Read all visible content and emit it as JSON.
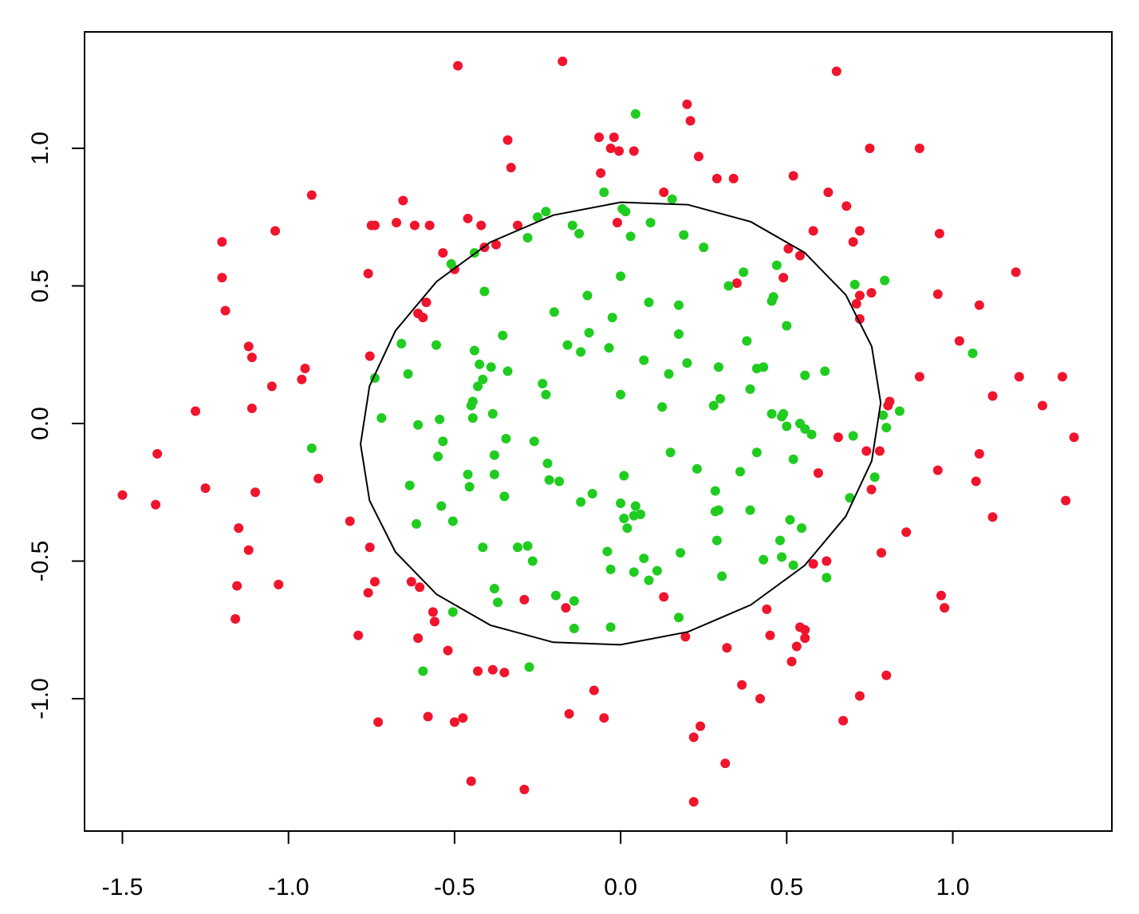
{
  "chart_data": {
    "type": "scatter",
    "xlim": [
      -1.614,
      1.479
    ],
    "ylim": [
      -1.481,
      1.423
    ],
    "xticks": [
      -1.5,
      {
        "value": -1,
        "label": "-1.0"
      },
      -0.5,
      {
        "value": 0,
        "label": "0.0"
      },
      0.5,
      {
        "value": 1,
        "label": "1.0"
      }
    ],
    "yticks": [
      {
        "value": -1,
        "label": "-1.0"
      },
      -0.5,
      {
        "value": 0,
        "label": "0.0"
      },
      0.5,
      {
        "value": 1,
        "label": "1.0"
      }
    ],
    "series": [
      {
        "color": "#f0142d",
        "x": [
          -0.175,
          -0.49,
          0.65,
          0.2,
          0.21,
          -0.34,
          -0.065,
          -0.02,
          -0.03,
          -0.005,
          0.04,
          0.75,
          0.9,
          0.235,
          -0.33,
          -0.06,
          0.29,
          0.34,
          0.52,
          -0.93,
          0.13,
          0.625,
          -0.655,
          0.68,
          -0.01,
          -0.74,
          -0.75,
          -0.675,
          -0.62,
          -0.575,
          -0.46,
          -0.42,
          -0.31,
          -1.04,
          0.58,
          0.72,
          0.7,
          0.96,
          -1.2,
          -0.375,
          -0.41,
          0.505,
          -0.535,
          0.54,
          -0.5,
          1.19,
          -1.2,
          -0.76,
          0.49,
          0.35,
          -1.19,
          -0.585,
          0.755,
          0.955,
          0.72,
          0.71,
          -0.61,
          -0.595,
          1.08,
          0.72,
          -1.12,
          1.02,
          -1.11,
          -0.755,
          -0.95,
          -0.96,
          0.9,
          1.2,
          1.33,
          -1.05,
          1.12,
          0.81,
          0.805,
          1.27,
          -1.28,
          -1.11,
          0.655,
          1.365,
          -1.395,
          0.74,
          0.78,
          1.08,
          0.955,
          0.595,
          -0.91,
          1.07,
          -1.5,
          -1.25,
          -1.1,
          0.755,
          -1.4,
          1.34,
          1.12,
          -0.815,
          -1.15,
          0.86,
          -1.12,
          -0.755,
          0.785,
          0.62,
          0.58,
          -0.74,
          -0.63,
          -0.605,
          -1.155,
          -1.03,
          -0.76,
          0.965,
          0.975,
          -0.29,
          0.13,
          -0.165,
          -0.565,
          0.44,
          -0.56,
          -1.16,
          0.54,
          0.555,
          0.555,
          -0.79,
          0.45,
          -0.61,
          0.195,
          0.53,
          0.32,
          -0.52,
          0.515,
          -0.43,
          -0.385,
          -0.35,
          0.8,
          0.365,
          -0.08,
          0.72,
          0.42,
          -0.155,
          -0.58,
          -0.475,
          -0.5,
          -0.05,
          -0.73,
          0.67,
          0.24,
          0.22,
          0.315,
          -0.45,
          -0.29,
          0.22
        ],
        "y": [
          1.316,
          1.3,
          1.28,
          1.16,
          1.1,
          1.03,
          1.04,
          1.04,
          1,
          0.99,
          0.99,
          1,
          1,
          0.97,
          0.93,
          0.91,
          0.89,
          0.89,
          0.9,
          0.83,
          0.84,
          0.84,
          0.81,
          0.79,
          0.73,
          0.72,
          0.72,
          0.73,
          0.72,
          0.72,
          0.745,
          0.72,
          0.72,
          0.7,
          0.7,
          0.7,
          0.66,
          0.69,
          0.66,
          0.65,
          0.64,
          0.635,
          0.62,
          0.61,
          0.56,
          0.55,
          0.53,
          0.545,
          0.53,
          0.51,
          0.41,
          0.44,
          0.475,
          0.47,
          0.465,
          0.435,
          0.4,
          0.385,
          0.43,
          0.38,
          0.28,
          0.3,
          0.24,
          0.245,
          0.2,
          0.16,
          0.17,
          0.17,
          0.17,
          0.135,
          0.1,
          0.08,
          0.065,
          0.065,
          0.045,
          0.055,
          -0.05,
          -0.05,
          -0.11,
          -0.1,
          -0.1,
          -0.11,
          -0.17,
          -0.18,
          -0.2,
          -0.21,
          -0.26,
          -0.235,
          -0.25,
          -0.24,
          -0.295,
          -0.28,
          -0.34,
          -0.355,
          -0.38,
          -0.395,
          -0.46,
          -0.45,
          -0.47,
          -0.5,
          -0.51,
          -0.575,
          -0.575,
          -0.595,
          -0.59,
          -0.585,
          -0.615,
          -0.625,
          -0.67,
          -0.64,
          -0.63,
          -0.67,
          -0.685,
          -0.675,
          -0.72,
          -0.71,
          -0.74,
          -0.75,
          -0.78,
          -0.77,
          -0.77,
          -0.78,
          -0.775,
          -0.81,
          -0.815,
          -0.825,
          -0.865,
          -0.9,
          -0.895,
          -0.905,
          -0.915,
          -0.95,
          -0.97,
          -0.99,
          -1,
          -1.055,
          -1.065,
          -1.07,
          -1.085,
          -1.07,
          -1.085,
          -1.08,
          -1.1,
          -1.14,
          -1.235,
          -1.3,
          -1.33,
          -1.375
        ]
      },
      {
        "color": "#1fcc1f",
        "x": [
          0.045,
          -0.05,
          0.155,
          0.005,
          0.015,
          -0.225,
          -0.25,
          -0.145,
          0.09,
          -0.125,
          0.03,
          0.19,
          -0.28,
          0.25,
          -0.44,
          -0.51,
          0.47,
          0.37,
          0,
          0.795,
          0.325,
          0.705,
          -0.41,
          -0.1,
          0.46,
          0.455,
          0.085,
          0.175,
          -0.2,
          -0.025,
          0.5,
          -0.095,
          0.175,
          -0.355,
          -0.66,
          -0.555,
          -0.16,
          0.38,
          -0.035,
          1.06,
          -0.44,
          -0.12,
          0.07,
          0.2,
          -0.425,
          -0.39,
          0.295,
          0.41,
          0.43,
          0.615,
          -0.34,
          -0.64,
          0.145,
          0.555,
          -0.74,
          -0.415,
          -0.235,
          -0.43,
          0.39,
          -0.225,
          0,
          0.3,
          -0.445,
          -0.45,
          0.28,
          0.125,
          0.84,
          -0.385,
          0.455,
          0.49,
          0.79,
          0.485,
          -0.72,
          -0.445,
          -0.545,
          0.54,
          -0.61,
          0.5,
          0.555,
          0.8,
          0.575,
          0.7,
          -0.345,
          -0.535,
          -0.26,
          -0.93,
          0.15,
          0.41,
          -0.55,
          -0.38,
          0.52,
          -0.22,
          0.23,
          0.36,
          -0.46,
          -0.38,
          0.01,
          0.765,
          -0.215,
          -0.185,
          -0.635,
          -0.455,
          0.285,
          -0.085,
          -0.35,
          0.69,
          -0.12,
          0,
          0.045,
          -0.54,
          0.295,
          0.285,
          0.39,
          0.04,
          0.06,
          0.01,
          -0.505,
          0.51,
          -0.615,
          0.02,
          0.545,
          0.29,
          0.48,
          -0.415,
          -0.28,
          -0.31,
          -0.04,
          0.18,
          0.07,
          0.43,
          0.485,
          -0.265,
          0.52,
          -0.03,
          0.04,
          0.11,
          0.305,
          0.085,
          0.62,
          -0.38,
          -0.195,
          -0.14,
          -0.37,
          -0.505,
          0.175,
          -0.14,
          -0.03,
          -0.275,
          -0.595
        ],
        "y": [
          1.125,
          0.84,
          0.815,
          0.78,
          0.77,
          0.77,
          0.75,
          0.72,
          0.73,
          0.69,
          0.68,
          0.685,
          0.675,
          0.64,
          0.62,
          0.58,
          0.575,
          0.55,
          0.535,
          0.52,
          0.5,
          0.505,
          0.48,
          0.465,
          0.46,
          0.445,
          0.44,
          0.43,
          0.405,
          0.385,
          0.355,
          0.33,
          0.325,
          0.32,
          0.29,
          0.285,
          0.285,
          0.3,
          0.275,
          0.255,
          0.265,
          0.26,
          0.23,
          0.22,
          0.215,
          0.205,
          0.205,
          0.2,
          0.205,
          0.19,
          0.19,
          0.18,
          0.18,
          0.175,
          0.165,
          0.16,
          0.145,
          0.135,
          0.125,
          0.105,
          0.105,
          0.09,
          0.08,
          0.065,
          0.065,
          0.06,
          0.045,
          0.035,
          0.035,
          0.035,
          0.03,
          0.025,
          0.02,
          0.02,
          0.015,
          0,
          -0.005,
          -0.01,
          -0.02,
          -0.015,
          -0.04,
          -0.045,
          -0.055,
          -0.065,
          -0.065,
          -0.09,
          -0.105,
          -0.105,
          -0.12,
          -0.115,
          -0.13,
          -0.145,
          -0.165,
          -0.175,
          -0.185,
          -0.185,
          -0.19,
          -0.195,
          -0.205,
          -0.21,
          -0.225,
          -0.23,
          -0.245,
          -0.255,
          -0.265,
          -0.27,
          -0.285,
          -0.29,
          -0.3,
          -0.3,
          -0.315,
          -0.32,
          -0.315,
          -0.335,
          -0.33,
          -0.345,
          -0.355,
          -0.35,
          -0.365,
          -0.38,
          -0.38,
          -0.425,
          -0.425,
          -0.45,
          -0.445,
          -0.45,
          -0.465,
          -0.47,
          -0.49,
          -0.495,
          -0.485,
          -0.5,
          -0.515,
          -0.53,
          -0.54,
          -0.535,
          -0.555,
          -0.57,
          -0.56,
          -0.6,
          -0.625,
          -0.645,
          -0.65,
          -0.685,
          -0.705,
          -0.745,
          -0.74,
          -0.885,
          -0.9
        ]
      }
    ],
    "boundary": {
      "color": "#000000",
      "x": [
        0.783,
        0.756,
        0.678,
        0.554,
        0.392,
        0.203,
        0,
        -0.203,
        -0.392,
        -0.554,
        -0.678,
        -0.756,
        -0.783,
        -0.756,
        -0.678,
        -0.554,
        -0.392,
        -0.203,
        0,
        0.203,
        0.392,
        0.554,
        0.678,
        0.756,
        0.783
      ],
      "y": [
        0.075,
        0.28,
        0.467,
        0.621,
        0.733,
        0.795,
        0.804,
        0.757,
        0.659,
        0.516,
        0.337,
        0.136,
        -0.075,
        -0.28,
        -0.467,
        -0.621,
        -0.733,
        -0.795,
        -0.804,
        -0.757,
        -0.659,
        -0.516,
        -0.337,
        -0.136,
        0.075
      ]
    }
  }
}
